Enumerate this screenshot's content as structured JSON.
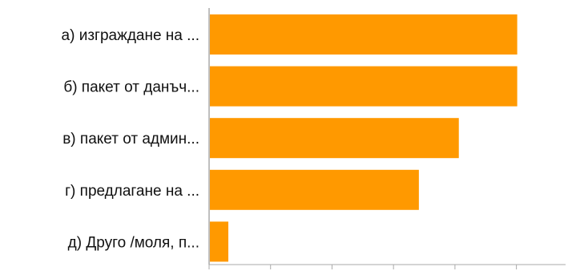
{
  "chart_data": {
    "type": "bar",
    "orientation": "horizontal",
    "categories": [
      "а) изграждане на ...",
      "б) пакет от данъч...",
      "в) пакет от админ...",
      "г) предлагане на ...",
      "д) Друго /моля, п..."
    ],
    "values": [
      100,
      100,
      81,
      68,
      6
    ],
    "xlim": [
      0,
      116
    ],
    "ticks": [
      0,
      20,
      40,
      60,
      80,
      100
    ],
    "title": "",
    "xlabel": "",
    "ylabel": "",
    "grid": false,
    "legend": "none",
    "colors": {
      "bar": "#ff9900",
      "axis": "#aaaaaa",
      "text": "#111111"
    }
  }
}
